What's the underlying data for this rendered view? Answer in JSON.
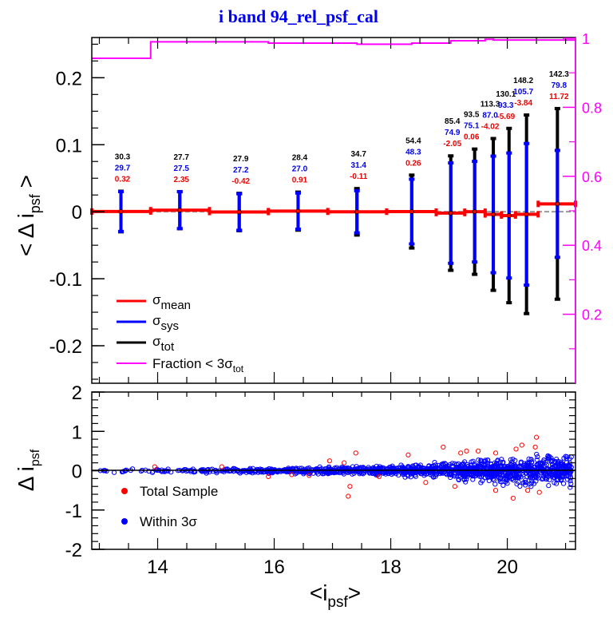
{
  "chart_data": [
    {
      "type": "line",
      "panel": "top",
      "title": "i band 94_rel_psf_cal",
      "xlabel": "<i_psf>",
      "ylabel": "< Δ i_psf >",
      "xlim": [
        12.87,
        21.17
      ],
      "ylim": [
        -0.256,
        0.26
      ],
      "yticks": [
        "-0.2",
        "-0.1",
        "0",
        "0.1",
        "0.2"
      ],
      "ytick_values": [
        -0.2,
        -0.1,
        0,
        0.1,
        0.2
      ],
      "right_axis": {
        "label_color": "#ff00ff",
        "ylim": [
          0,
          1.0
        ],
        "yticks": [
          "0.2",
          "0.4",
          "0.6",
          "0.8",
          "1"
        ],
        "ytick_values": [
          0.2,
          0.4,
          0.6,
          0.8,
          1.0
        ]
      },
      "grid": false,
      "zero_line": {
        "style": "dashed",
        "color": "#999999"
      },
      "bins": [
        {
          "x": 13.37,
          "xlo": 12.87,
          "xhi": 13.88,
          "mean_mmag": 0.32,
          "sys_mmag": 29.7,
          "tot_mmag": 30.3
        },
        {
          "x": 14.38,
          "xlo": 13.88,
          "xhi": 14.89,
          "mean_mmag": 2.35,
          "sys_mmag": 27.5,
          "tot_mmag": 27.7
        },
        {
          "x": 15.4,
          "xlo": 14.89,
          "xhi": 15.9,
          "mean_mmag": -0.42,
          "sys_mmag": 27.2,
          "tot_mmag": 27.9
        },
        {
          "x": 16.41,
          "xlo": 15.9,
          "xhi": 16.92,
          "mean_mmag": 0.91,
          "sys_mmag": 27.0,
          "tot_mmag": 28.4
        },
        {
          "x": 17.42,
          "xlo": 16.92,
          "xhi": 17.93,
          "mean_mmag": -0.11,
          "sys_mmag": 31.4,
          "tot_mmag": 34.7
        },
        {
          "x": 18.36,
          "xlo": 17.93,
          "xhi": 18.78,
          "mean_mmag": 0.26,
          "sys_mmag": 48.3,
          "tot_mmag": 54.4
        },
        {
          "x": 19.03,
          "xlo": 18.78,
          "xhi": 19.27,
          "mean_mmag": -2.05,
          "sys_mmag": 74.9,
          "tot_mmag": 85.4
        },
        {
          "x": 19.44,
          "xlo": 19.27,
          "xhi": 19.62,
          "mean_mmag": 0.06,
          "sys_mmag": 75.1,
          "tot_mmag": 93.5
        },
        {
          "x": 19.76,
          "xlo": 19.62,
          "xhi": 19.9,
          "mean_mmag": -4.02,
          "sys_mmag": 87.0,
          "tot_mmag": 113.3
        },
        {
          "x": 20.03,
          "xlo": 19.9,
          "xhi": 20.14,
          "mean_mmag": -5.69,
          "sys_mmag": 93.3,
          "tot_mmag": 130.1
        },
        {
          "x": 20.33,
          "xlo": 20.14,
          "xhi": 20.53,
          "mean_mmag": -3.84,
          "sys_mmag": 105.7,
          "tot_mmag": 148.2
        },
        {
          "x": 20.86,
          "xlo": 20.53,
          "xhi": 21.17,
          "mean_mmag": 11.72,
          "sys_mmag": 79.8,
          "tot_mmag": 142.3
        }
      ],
      "labels": [
        {
          "tot": "30.3",
          "sys": "29.7",
          "mean": "0.32"
        },
        {
          "tot": "27.7",
          "sys": "27.5",
          "mean": "2.35"
        },
        {
          "tot": "27.9",
          "sys": "27.2",
          "mean": "-0.42"
        },
        {
          "tot": "28.4",
          "sys": "27.0",
          "mean": "0.91"
        },
        {
          "tot": "34.7",
          "sys": "31.4",
          "mean": "-0.11"
        },
        {
          "tot": "54.4",
          "sys": "48.3",
          "mean": "0.26"
        },
        {
          "tot": "85.4",
          "sys": "74.9",
          "mean": "-2.05"
        },
        {
          "tot": "93.5",
          "sys": "75.1",
          "mean": "0.06"
        },
        {
          "tot": "113.3",
          "sys": "87.0",
          "mean": "-4.02"
        },
        {
          "tot": "130.1",
          "sys": "93.3",
          "mean": "-5.69"
        },
        {
          "tot": "148.2",
          "sys": "105.7",
          "mean": "-3.84"
        },
        {
          "tot": "142.3",
          "sys": "79.8",
          "mean": "11.72"
        }
      ],
      "fraction_steps": [
        {
          "xlo": 12.87,
          "xhi": 13.88,
          "value": 0.942
        },
        {
          "xlo": 13.88,
          "xhi": 15.9,
          "value": 0.99
        },
        {
          "xlo": 15.9,
          "xhi": 17.42,
          "value": 0.986
        },
        {
          "xlo": 17.42,
          "xhi": 18.36,
          "value": 0.983
        },
        {
          "xlo": 18.36,
          "xhi": 19.03,
          "value": 0.986
        },
        {
          "xlo": 19.03,
          "xhi": 19.62,
          "value": 0.993
        },
        {
          "xlo": 19.62,
          "xhi": 19.76,
          "value": 0.997
        },
        {
          "xlo": 19.76,
          "xhi": 21.17,
          "value": 0.995
        }
      ],
      "legend": {
        "placement": "bottom-left",
        "entries": [
          {
            "label": "σ",
            "sub": "mean",
            "color": "#ff0000"
          },
          {
            "label": "σ",
            "sub": "sys",
            "color": "#0000ff"
          },
          {
            "label": "σ",
            "sub": "tot",
            "color": "#000000"
          },
          {
            "label": "Fraction < 3σ",
            "sub": "tot",
            "color": "#ff00ff"
          }
        ]
      }
    },
    {
      "type": "scatter",
      "panel": "bottom",
      "xlabel": "<i_psf>",
      "ylabel": "Δ i_psf",
      "xlim": [
        12.87,
        21.17
      ],
      "ylim": [
        -2,
        2
      ],
      "xticks": [
        "14",
        "16",
        "18",
        "20"
      ],
      "xtick_values": [
        14,
        16,
        18,
        20
      ],
      "yticks": [
        "-2",
        "-1",
        "0",
        "1",
        "2"
      ],
      "ytick_values": [
        -2,
        -1,
        0,
        1,
        2
      ],
      "grid": false,
      "series": [
        {
          "name": "Total Sample",
          "color": "#ff0000",
          "marker": "open-circle"
        },
        {
          "name": "Within 3σ",
          "color": "#0000ff",
          "marker": "open-circle"
        }
      ],
      "spread_envelope": [
        {
          "x": 13.0,
          "sigma3": 0.05
        },
        {
          "x": 14.0,
          "sigma3": 0.06
        },
        {
          "x": 16.0,
          "sigma3": 0.08
        },
        {
          "x": 18.0,
          "sigma3": 0.15
        },
        {
          "x": 19.0,
          "sigma3": 0.25
        },
        {
          "x": 20.0,
          "sigma3": 0.4
        },
        {
          "x": 20.8,
          "sigma3": 0.45
        }
      ],
      "outliers": [
        {
          "x": 13.95,
          "y": 0.1
        },
        {
          "x": 15.9,
          "y": -0.15
        },
        {
          "x": 16.3,
          "y": -0.1
        },
        {
          "x": 16.6,
          "y": -0.12
        },
        {
          "x": 17.27,
          "y": -0.65
        },
        {
          "x": 17.3,
          "y": -0.4
        },
        {
          "x": 17.4,
          "y": 0.45
        },
        {
          "x": 17.2,
          "y": 0.2
        },
        {
          "x": 16.95,
          "y": 0.25
        },
        {
          "x": 18.3,
          "y": 0.4
        },
        {
          "x": 19.2,
          "y": 0.45
        },
        {
          "x": 19.3,
          "y": 0.5
        },
        {
          "x": 19.5,
          "y": 0.5
        },
        {
          "x": 19.1,
          "y": -0.4
        },
        {
          "x": 19.8,
          "y": 0.45
        },
        {
          "x": 20.15,
          "y": 0.55
        },
        {
          "x": 20.25,
          "y": 0.65
        },
        {
          "x": 20.5,
          "y": 0.85
        },
        {
          "x": 20.48,
          "y": 0.6
        },
        {
          "x": 20.1,
          "y": -0.7
        },
        {
          "x": 19.8,
          "y": -0.5
        },
        {
          "x": 20.35,
          "y": -0.5
        },
        {
          "x": 20.55,
          "y": -0.55
        },
        {
          "x": 18.6,
          "y": -0.3
        },
        {
          "x": 17.8,
          "y": -0.15
        },
        {
          "x": 15.1,
          "y": 0.1
        },
        {
          "x": 18.9,
          "y": 0.6
        }
      ],
      "legend": {
        "placement": "bottom-left",
        "entries": [
          "Total Sample",
          "Within 3σ"
        ]
      }
    }
  ],
  "text": {
    "title": "i band 94_rel_psf_cal",
    "top_ylabel_main": "< Δ i",
    "top_ylabel_sub": "psf",
    "top_ylabel_end": " >",
    "bottom_ylabel_main": "Δ i",
    "bottom_ylabel_sub": "psf",
    "xlabel_main": "<i",
    "xlabel_sub": "psf",
    "xlabel_end": ">",
    "legend_sigma": "σ",
    "legend_mean": "mean",
    "legend_sys": "sys",
    "legend_tot": "tot",
    "legend_fraction": "Fraction < 3σ",
    "legend_fraction_sub": "tot",
    "legend_total_sample": "Total Sample",
    "legend_within": "Within 3σ"
  }
}
